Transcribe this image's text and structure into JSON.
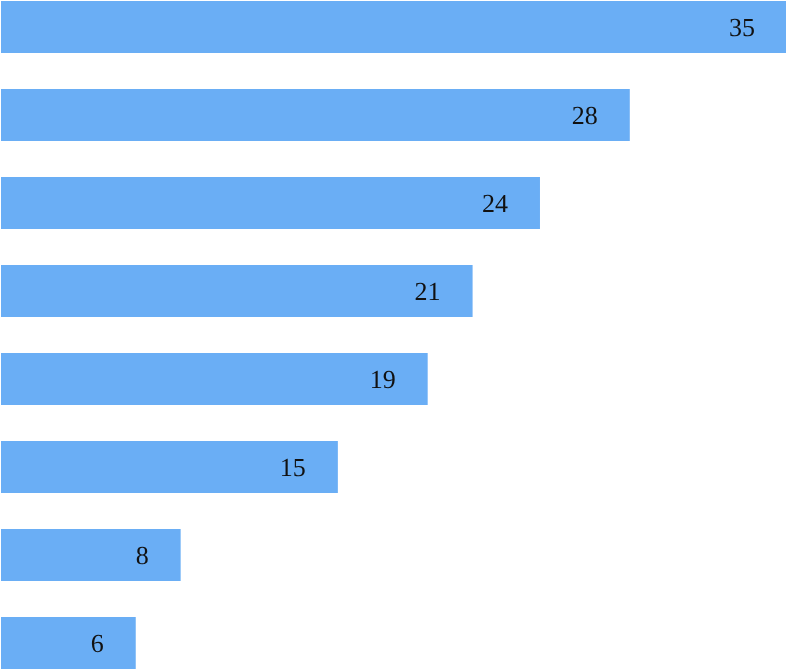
{
  "chart_data": {
    "type": "bar",
    "orientation": "horizontal",
    "categories": [
      null,
      null,
      null,
      null,
      null,
      null,
      null,
      null
    ],
    "values": [
      35,
      28,
      24,
      21,
      19,
      15,
      8,
      6
    ],
    "color": "#6aaef5",
    "data_labels": true,
    "grid": false,
    "tick_labels": false
  }
}
